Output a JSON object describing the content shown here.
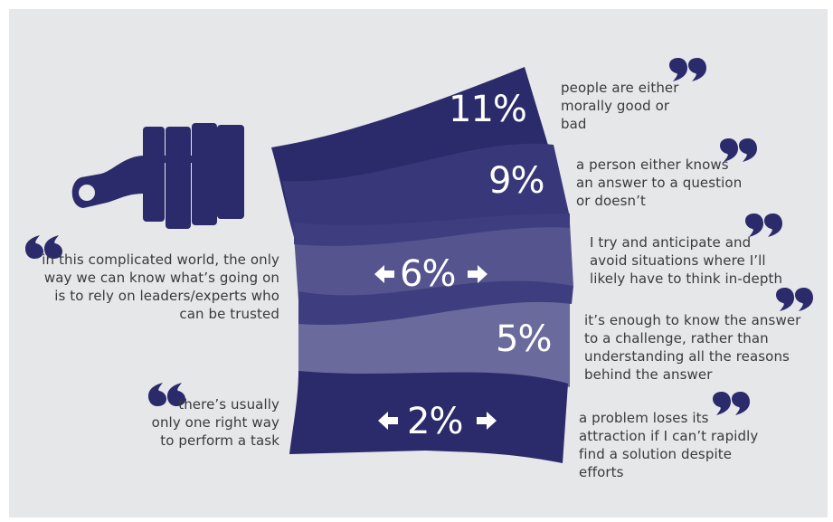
{
  "colors": {
    "background": "#e6e7e9",
    "navy": "#2b2a6b",
    "band_mid": "#3e3d80",
    "band_light": "#55548e",
    "band_lightest": "#6b6a9c",
    "text": "#3a3a3e"
  },
  "icons": {
    "brush": "paint-brush-icon",
    "quote": "quote-mark-icon",
    "arrow_left": "arrow-left-icon",
    "arrow_right": "arrow-right-icon"
  },
  "stats": [
    {
      "value": "11%",
      "quote": "people are either\nmorally good or\nbad"
    },
    {
      "value": "9%",
      "quote": "a person either knows\nan answer to a question\nor doesn’t"
    },
    {
      "value": "6%",
      "quote": "I try and anticipate and\navoid situations where I’ll\nlikely have to think in-depth"
    },
    {
      "value": "5%",
      "quote": "it’s enough to know the answer\nto a challenge, rather than\nunderstanding all the reasons\nbehind the answer"
    },
    {
      "value": "2%",
      "quote": "a problem loses its\nattraction if I can’t rapidly\nfind a solution despite\nefforts"
    }
  ],
  "left_quotes": [
    "in this complicated world, the only\nway we can know what’s going on\nis to rely on leaders/experts who\ncan be trusted",
    "there’s usually\nonly one right way\nto perform a task"
  ]
}
